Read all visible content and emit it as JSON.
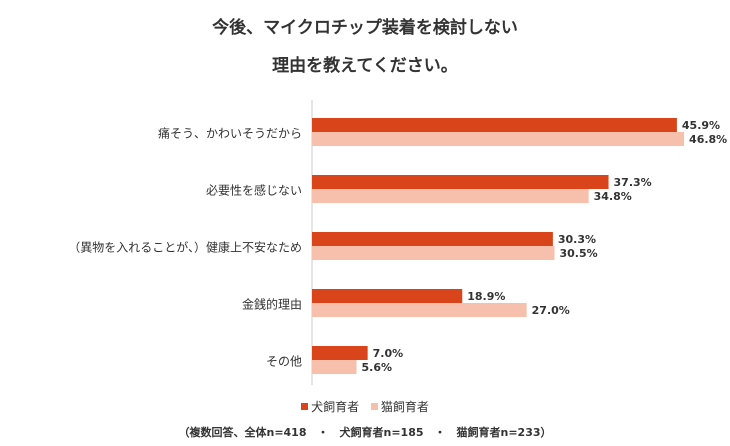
{
  "page": {
    "title_line1": "今後、マイクロチップ装着を検討しない",
    "title_line2": "理由を教えてください。",
    "note": "（複数回答、全体n=418　・　犬飼育者n=185　・　猫飼育者n=233）"
  },
  "chart_data": {
    "type": "bar",
    "orientation": "horizontal",
    "title": "今後、マイクロチップ装着を検討しない 理由を教えてください。",
    "categories": [
      "痛そう、かわいそうだから",
      "必要性を感じない",
      "（異物を入れることが、）健康上不安なため",
      "金銭的理由",
      "その他"
    ],
    "series": [
      {
        "name": "犬飼育者",
        "color": "#D9441B",
        "values": [
          45.9,
          37.3,
          30.3,
          18.9,
          7.0
        ]
      },
      {
        "name": "猫飼育者",
        "color": "#F7C0AC",
        "values": [
          46.8,
          34.8,
          30.5,
          27.0,
          5.6
        ]
      }
    ],
    "value_labels": [
      [
        "45.9%",
        "37.3%",
        "30.3%",
        "18.9%",
        "7.0%"
      ],
      [
        "46.8%",
        "34.8%",
        "30.5%",
        "27.0%",
        "5.6%"
      ]
    ],
    "xlim": [
      0,
      50
    ],
    "unit": "%",
    "grid": false,
    "legend_position": "bottom"
  }
}
